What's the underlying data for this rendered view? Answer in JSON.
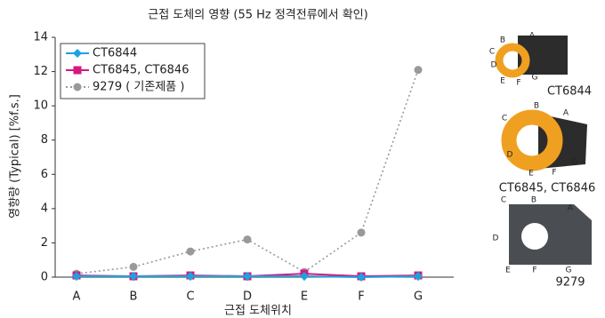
{
  "chart_data": {
    "type": "line",
    "title": "근접 도체의 영향 (55 Hz 정격전류에서 확인)",
    "x_label": "근접 도체위치",
    "y_label": "영향량 (Typical) [%f.s.]",
    "categories": [
      "A",
      "B",
      "C",
      "D",
      "E",
      "F",
      "G"
    ],
    "series": [
      {
        "name": "CT6844",
        "color": "#1aa3e0",
        "marker": "diamond",
        "dash": "solid",
        "values": [
          0.05,
          0.05,
          0.05,
          0.05,
          0.05,
          0.0,
          0.05
        ]
      },
      {
        "name": "CT6845, CT6846",
        "color": "#d6197f",
        "marker": "square",
        "dash": "solid",
        "values": [
          0.1,
          0.05,
          0.1,
          0.05,
          0.2,
          0.05,
          0.1
        ]
      },
      {
        "name": "9279 ( 기존제품 )",
        "color": "#999999",
        "marker": "circle",
        "dash": "dotted",
        "values": [
          0.2,
          0.6,
          1.5,
          2.2,
          0.3,
          2.6,
          12.1
        ]
      }
    ],
    "ylim": [
      0,
      14
    ],
    "yticks": [
      0,
      2,
      4,
      6,
      8,
      10,
      12,
      14
    ],
    "grid": false,
    "legend": "upper left"
  },
  "images": [
    {
      "caption": "CT6844",
      "labels": [
        "A",
        "B",
        "C",
        "D",
        "E",
        "F",
        "G"
      ]
    },
    {
      "caption": "CT6845, CT6846",
      "labels": [
        "A",
        "B",
        "C",
        "D",
        "E",
        "F",
        "G"
      ]
    },
    {
      "caption": "9279",
      "labels": [
        "A",
        "B",
        "C",
        "D",
        "E",
        "F",
        "G"
      ]
    }
  ]
}
